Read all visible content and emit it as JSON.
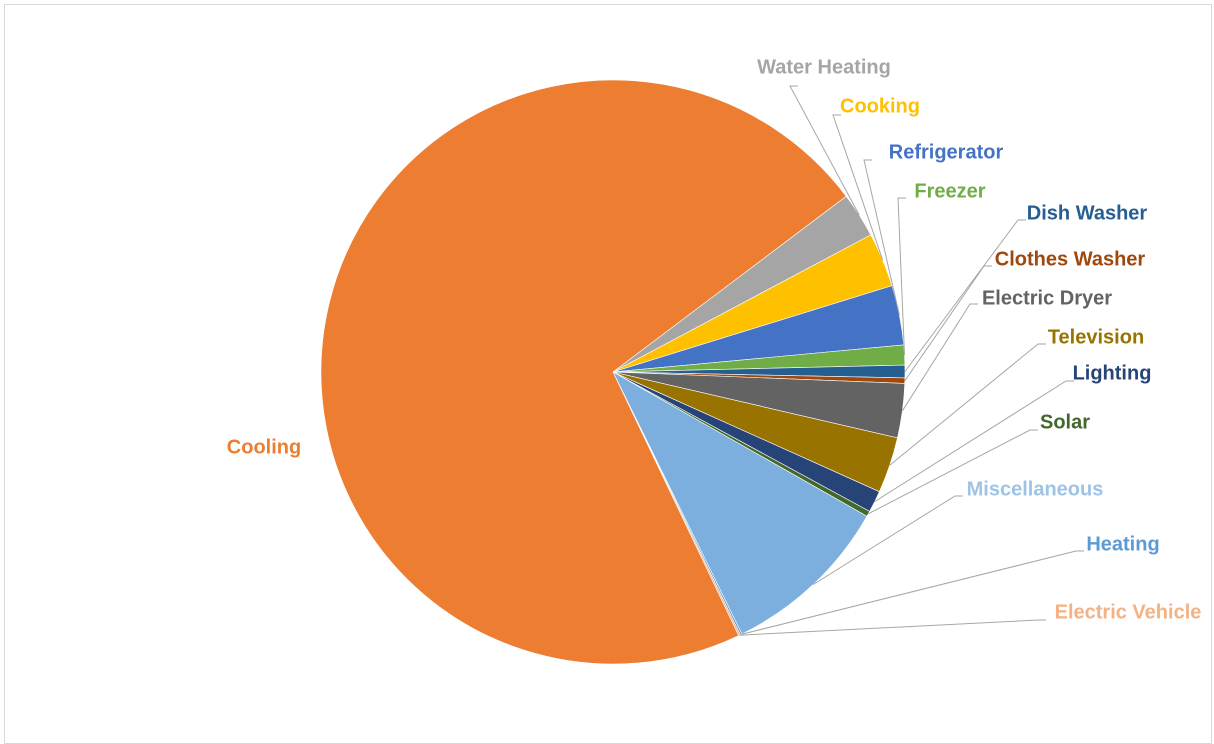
{
  "chart_data": {
    "type": "pie",
    "title": "",
    "legend": "none",
    "slices": [
      {
        "label": "Water Heating",
        "value": 2.5,
        "color": "#A5A5A5"
      },
      {
        "label": "Cooking",
        "value": 3.0,
        "color": "#FFC000"
      },
      {
        "label": "Refrigerator",
        "value": 3.3,
        "color": "#4472C4"
      },
      {
        "label": "Freezer",
        "value": 1.1,
        "color": "#70AD47"
      },
      {
        "label": "Dish Washer",
        "value": 0.7,
        "color": "#255E91"
      },
      {
        "label": "Clothes Washer",
        "value": 0.3,
        "color": "#9E480E"
      },
      {
        "label": "Electric Dryer",
        "value": 3.0,
        "color": "#636363"
      },
      {
        "label": "Television",
        "value": 3.1,
        "color": "#997300"
      },
      {
        "label": "Lighting",
        "value": 1.2,
        "color": "#264478"
      },
      {
        "label": "Solar",
        "value": 0.3,
        "color": "#43682B"
      },
      {
        "label": "Miscellaneous",
        "value": 9.5,
        "color": "#7CAFDD"
      },
      {
        "label": "Heating",
        "value": 0.1,
        "color": "#5B9BD5"
      },
      {
        "label": "Electric Vehicle",
        "value": 0.1,
        "color": "#F4B183"
      },
      {
        "label": "Cooling",
        "value": 71.8,
        "color": "#ED7D31"
      }
    ]
  },
  "label_colors": {
    "Water Heating": "#A5A5A5",
    "Cooking": "#FFC000",
    "Refrigerator": "#4472C4",
    "Freezer": "#70AD47",
    "Dish Washer": "#255E91",
    "Clothes Washer": "#9E480E",
    "Electric Dryer": "#636363",
    "Television": "#997300",
    "Lighting": "#264478",
    "Solar": "#43682B",
    "Miscellaneous": "#9DC3E6",
    "Heating": "#5B9BD5",
    "Electric Vehicle": "#F4B183",
    "Cooling": "#ED7D31"
  }
}
